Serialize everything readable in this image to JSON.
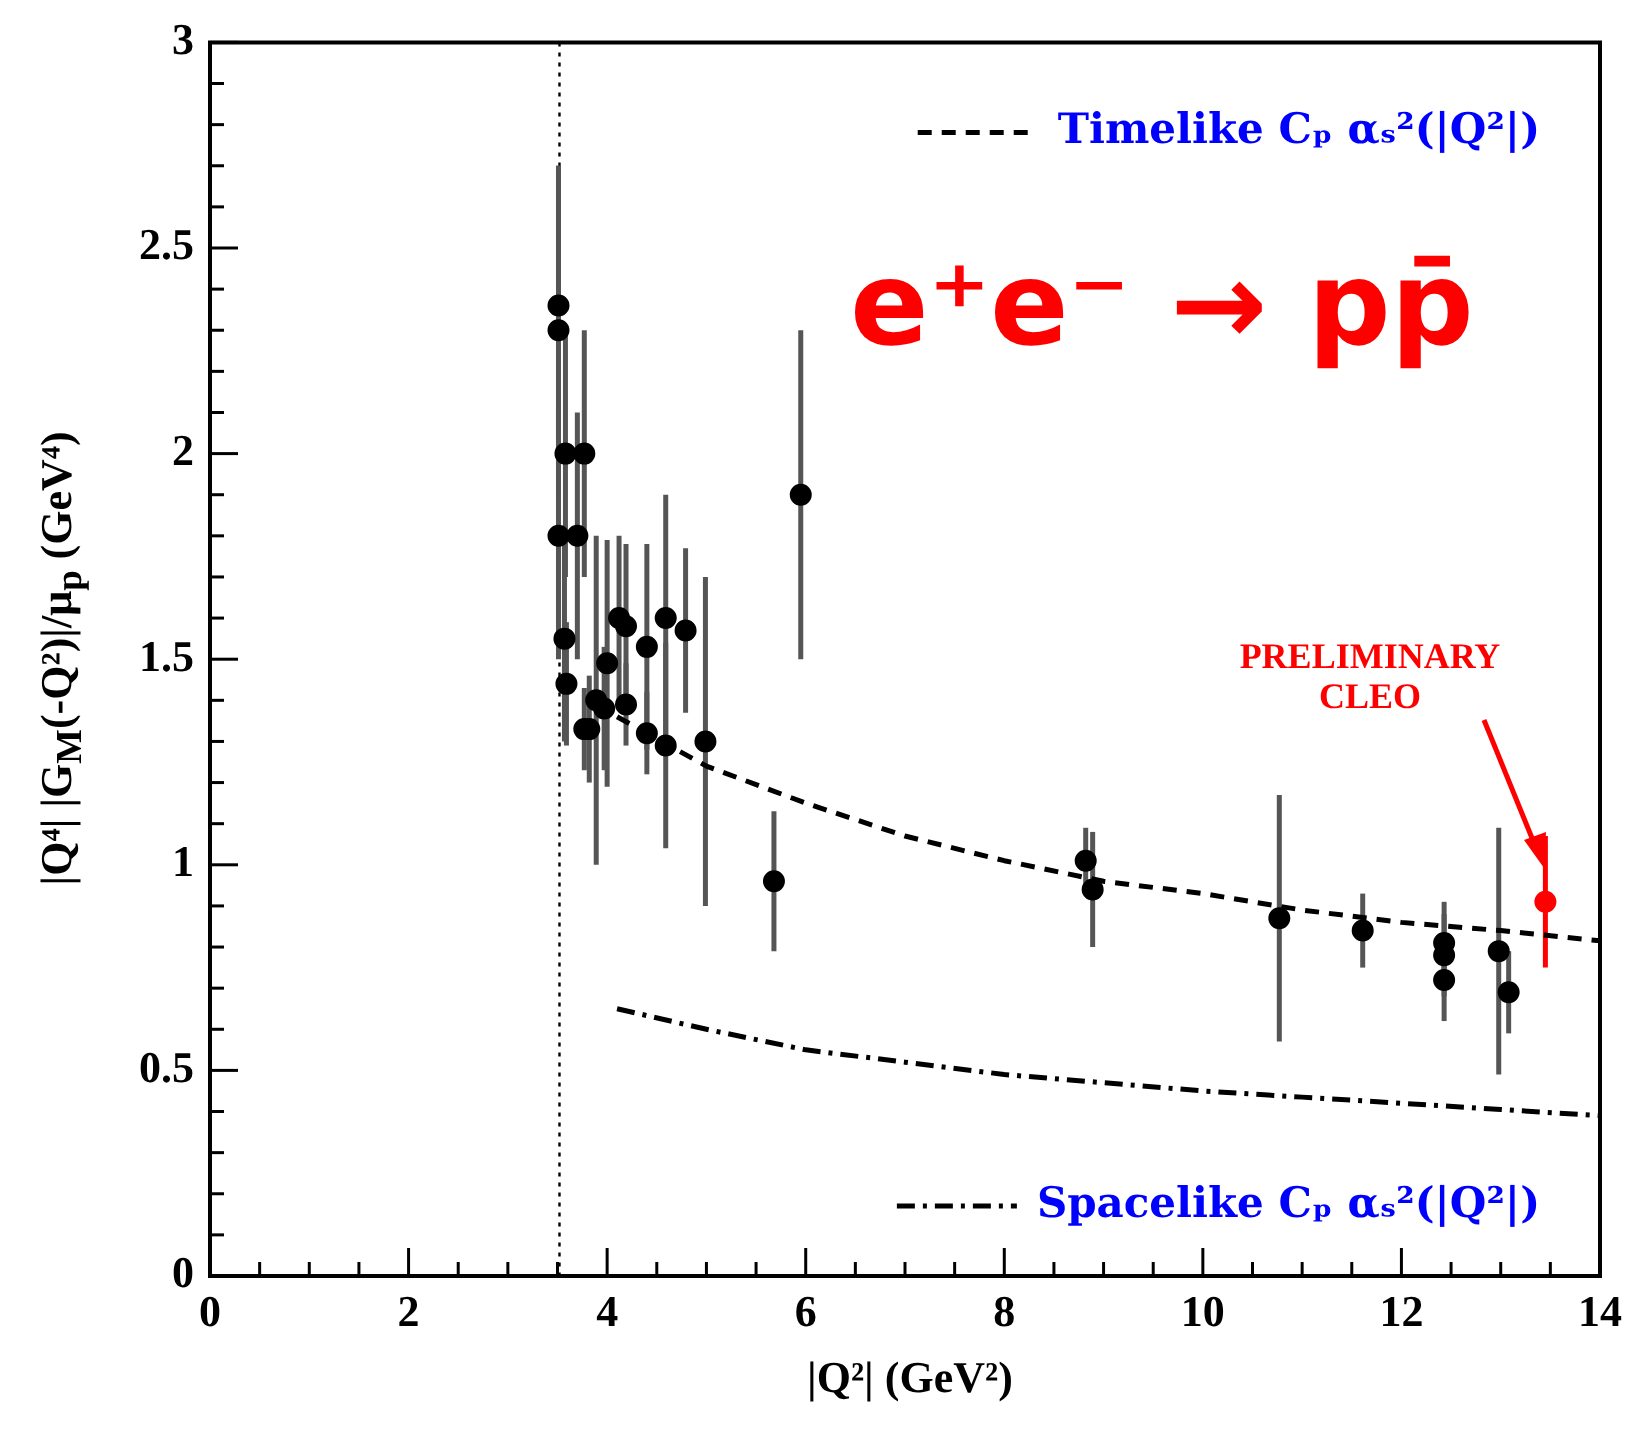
{
  "chart_data": {
    "type": "scatter",
    "xlabel": "|Q²|  (GeV²)",
    "ylabel": "|Q⁴| |G$_{M}$(-Q²)|/μ$_{p}$   (GeV⁴)",
    "xlim": [
      0,
      14
    ],
    "xticks": [
      0,
      {
        "value": 0.5,
        "label": null
      },
      {
        "value": 1,
        "label": null
      },
      {
        "value": 1.5,
        "label": null
      },
      2,
      {
        "value": 2.5,
        "label": null
      },
      {
        "value": 3,
        "label": null
      },
      {
        "value": 3.5,
        "label": null
      },
      4,
      {
        "value": 4.5,
        "label": null
      },
      {
        "value": 5,
        "label": null
      },
      {
        "value": 5.5,
        "label": null
      },
      6,
      {
        "value": 6.5,
        "label": null
      },
      {
        "value": 7,
        "label": null
      },
      {
        "value": 7.5,
        "label": null
      },
      8,
      {
        "value": 8.5,
        "label": null
      },
      {
        "value": 9,
        "label": null
      },
      {
        "value": 9.5,
        "label": null
      },
      10,
      {
        "value": 10.5,
        "label": null
      },
      {
        "value": 11,
        "label": null
      },
      {
        "value": 11.5,
        "label": null
      },
      12,
      {
        "value": 12.5,
        "label": null
      },
      {
        "value": 13,
        "label": null
      },
      {
        "value": 13.5,
        "label": null
      },
      14
    ],
    "ylim": [
      0,
      3
    ],
    "yticks": [
      0,
      {
        "value": 0.1,
        "label": null
      },
      {
        "value": 0.2,
        "label": null
      },
      {
        "value": 0.3,
        "label": null
      },
      {
        "value": 0.4,
        "label": null
      },
      0.5,
      {
        "value": 0.6,
        "label": null
      },
      {
        "value": 0.7,
        "label": null
      },
      {
        "value": 0.8,
        "label": null
      },
      {
        "value": 0.9,
        "label": null
      },
      1,
      {
        "value": 1.1,
        "label": null
      },
      {
        "value": 1.2,
        "label": null
      },
      {
        "value": 1.3,
        "label": null
      },
      {
        "value": 1.4,
        "label": null
      },
      1.5,
      {
        "value": 1.6,
        "label": null
      },
      {
        "value": 1.7,
        "label": null
      },
      {
        "value": 1.8,
        "label": null
      },
      {
        "value": 1.9,
        "label": null
      },
      2,
      {
        "value": 2.1,
        "label": null
      },
      {
        "value": 2.2,
        "label": null
      },
      {
        "value": 2.3,
        "label": null
      },
      {
        "value": 2.4,
        "label": null
      },
      2.5,
      {
        "value": 2.6,
        "label": null
      },
      {
        "value": 2.7,
        "label": null
      },
      {
        "value": 2.8,
        "label": null
      },
      {
        "value": 2.9,
        "label": null
      },
      3
    ],
    "grid": false,
    "legend": "right",
    "marker": "circle",
    "series": [
      {
        "type": "scatter",
        "color": "#000000",
        "x": [
          3.51,
          3.51,
          3.58,
          3.77,
          3.51,
          3.7,
          3.57,
          3.59,
          3.77,
          3.82,
          3.89,
          3.97,
          4.0,
          4.12,
          4.19,
          4.19,
          4.4,
          4.4,
          4.59,
          4.59,
          4.79,
          4.99,
          5.95,
          5.68,
          8.82,
          8.89,
          10.77,
          11.61,
          12.43,
          12.43,
          12.43,
          12.98,
          13.08
        ],
        "values": [
          2.36,
          2.3,
          2.0,
          2.0,
          1.8,
          1.8,
          1.55,
          1.44,
          1.33,
          1.33,
          1.4,
          1.38,
          1.49,
          1.6,
          1.58,
          1.39,
          1.53,
          1.32,
          1.6,
          1.29,
          1.57,
          1.3,
          1.9,
          0.96,
          1.01,
          0.94,
          0.87,
          0.84,
          0.81,
          0.78,
          0.72,
          0.79,
          0.69
        ],
        "errors": [
          0.34,
          0.4,
          0.3,
          0.3,
          0.3,
          0.3,
          0.25,
          0.15,
          0.1,
          0.13,
          0.4,
          0.15,
          0.3,
          0.2,
          0.2,
          0.1,
          0.25,
          0.1,
          0.3,
          0.25,
          0.2,
          0.4,
          0.4,
          0.17,
          0.08,
          0.14,
          0.3,
          0.09,
          0.1,
          0.1,
          0.1,
          0.3,
          0.1
        ]
      },
      {
        "type": "scatter",
        "color": "#ff0000",
        "x": [
          13.45
        ],
        "values": [
          0.91
        ],
        "errors": [
          0.16
        ]
      },
      {
        "type": "line",
        "name": "Timelike Cₚ αₛ²(|Q²|)",
        "color": "#000000",
        "line_style": "dashed",
        "marker": "none",
        "x": [
          4.1,
          5,
          6,
          7,
          8,
          9,
          10,
          11,
          12,
          13,
          14
        ],
        "values": [
          1.36,
          1.24,
          1.15,
          1.07,
          1.01,
          0.96,
          0.93,
          0.89,
          0.86,
          0.84,
          0.815
        ]
      },
      {
        "type": "line",
        "name": "Spacelike Cₚ αₛ²(|Q²|)",
        "color": "#000000",
        "line_style": "dashdot",
        "marker": "none",
        "x": [
          4.1,
          5,
          6,
          7,
          8,
          9,
          10,
          11,
          12,
          13,
          14
        ],
        "values": [
          0.65,
          0.6,
          0.55,
          0.52,
          0.49,
          0.47,
          0.45,
          0.435,
          0.42,
          0.405,
          0.39
        ]
      }
    ],
    "ref_lines": [
      {
        "axis": "x",
        "value": 3.52,
        "color": "#000000",
        "line_style": "dotted"
      }
    ],
    "annotations": [
      "e⁺e⁻ → pp̄",
      "PRELIMINARY CLEO"
    ]
  }
}
